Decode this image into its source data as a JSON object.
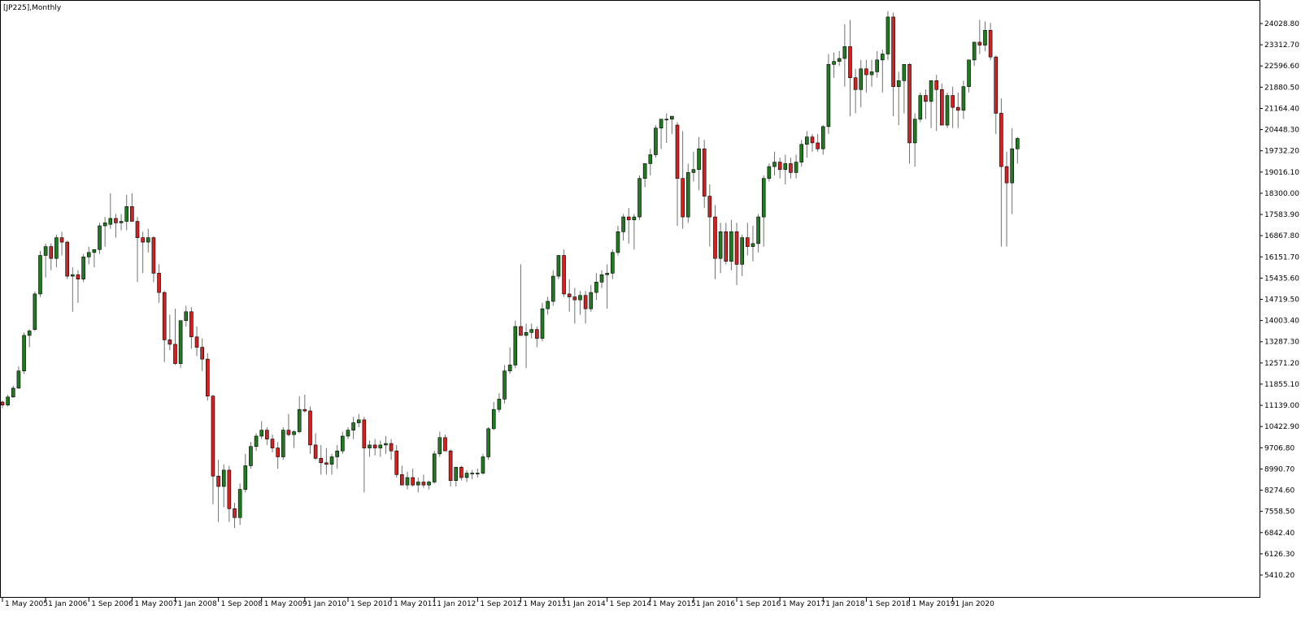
{
  "window": {
    "title": "[JP225],Monthly"
  },
  "colors": {
    "background": "#ffffff",
    "frame": "#000000",
    "bull_body": "#207a20",
    "bear_body": "#d42020",
    "wick": "#707070",
    "text": "#000000"
  },
  "chart_data": {
    "type": "candlestick",
    "title": "[JP225],Monthly",
    "symbol": "JP225",
    "timeframe": "Monthly",
    "price_axis": {
      "position": "right",
      "ticks": [
        5410.2,
        6126.3,
        6842.4,
        7558.5,
        8274.6,
        8990.7,
        9706.8,
        10422.9,
        11139.0,
        11855.1,
        12571.2,
        13287.3,
        14003.4,
        14719.5,
        15435.6,
        16151.7,
        16867.8,
        17583.9,
        18300.0,
        19016.1,
        19732.2,
        20448.3,
        21164.4,
        21880.5,
        22596.6,
        23312.7,
        24028.8
      ],
      "tick_labels": [
        "5410.20",
        "6126.30",
        "6842.40",
        "7558.50",
        "8274.60",
        "8990.70",
        "9706.80",
        "10422.90",
        "11139.00",
        "11855.10",
        "12571.20",
        "13287.30",
        "14003.40",
        "14719.50",
        "15435.60",
        "16151.70",
        "16867.80",
        "17583.90",
        "18300.00",
        "19016.10",
        "19732.20",
        "20448.30",
        "21164.40",
        "21880.50",
        "22596.60",
        "23312.70",
        "24028.80"
      ]
    },
    "time_axis": {
      "labels": [
        "1 May 2005",
        "1 Jan 2006",
        "1 Sep 2006",
        "1 May 2007",
        "1 Jan 2008",
        "1 Sep 2008",
        "1 May 2009",
        "1 Jan 2010",
        "1 Sep 2010",
        "1 May 2011",
        "1 Jan 2012",
        "1 Sep 2012",
        "1 May 2013",
        "1 Jan 2014",
        "1 Sep 2014",
        "1 May 2015",
        "1 Jan 2016",
        "1 Sep 2016",
        "1 May 2017",
        "1 Jan 2018",
        "1 Sep 2018",
        "1 May 2019",
        "1 Jan 2020"
      ],
      "label_candle_index": [
        0,
        8,
        16,
        24,
        32,
        40,
        48,
        56,
        64,
        72,
        80,
        88,
        96,
        104,
        112,
        120,
        128,
        136,
        144,
        152,
        160,
        168,
        176
      ]
    },
    "first_candle": "May 2005",
    "ohlc": [
      [
        11250,
        11300,
        11050,
        11150
      ],
      [
        11150,
        11500,
        11100,
        11420
      ],
      [
        11420,
        11800,
        11400,
        11720
      ],
      [
        11720,
        12450,
        11700,
        12300
      ],
      [
        12300,
        13600,
        12200,
        13500
      ],
      [
        13500,
        13700,
        13100,
        13650
      ],
      [
        13700,
        14980,
        13650,
        14900
      ],
      [
        14900,
        16350,
        14800,
        16200
      ],
      [
        16200,
        16600,
        15450,
        16500
      ],
      [
        16500,
        16600,
        15700,
        16100
      ],
      [
        16100,
        16900,
        15800,
        16800
      ],
      [
        16800,
        17000,
        16200,
        16650
      ],
      [
        16650,
        16700,
        15400,
        15500
      ],
      [
        15500,
        15800,
        14300,
        15550
      ],
      [
        15550,
        15700,
        14600,
        15400
      ],
      [
        15400,
        16250,
        15300,
        16150
      ],
      [
        16150,
        16500,
        15900,
        16300
      ],
      [
        16300,
        16400,
        15800,
        16400
      ],
      [
        16400,
        17300,
        16250,
        17200
      ],
      [
        17200,
        17500,
        16500,
        17300
      ],
      [
        17250,
        18300,
        17100,
        17450
      ],
      [
        17450,
        17600,
        16800,
        17300
      ],
      [
        17300,
        17600,
        17050,
        17350
      ],
      [
        17350,
        18250,
        17050,
        17850
      ],
      [
        17850,
        18300,
        17500,
        17350
      ],
      [
        17350,
        17500,
        15300,
        16800
      ],
      [
        16800,
        17000,
        15600,
        16650
      ],
      [
        16650,
        17100,
        16300,
        16800
      ],
      [
        16800,
        16850,
        15300,
        15600
      ],
      [
        15600,
        15900,
        14600,
        14950
      ],
      [
        14950,
        15000,
        12600,
        13350
      ],
      [
        13350,
        14200,
        13000,
        13200
      ],
      [
        13200,
        14400,
        12500,
        12550
      ],
      [
        12550,
        14000,
        12400,
        14000
      ],
      [
        14000,
        14500,
        13800,
        14300
      ],
      [
        14300,
        14450,
        13050,
        13450
      ],
      [
        13450,
        13800,
        12800,
        13100
      ],
      [
        13100,
        13400,
        12300,
        12700
      ],
      [
        12700,
        12900,
        11300,
        11450
      ],
      [
        11450,
        11500,
        7800,
        8750
      ],
      [
        8750,
        9300,
        7200,
        8400
      ],
      [
        8400,
        9150,
        7700,
        8950
      ],
      [
        8950,
        9100,
        7200,
        7650
      ],
      [
        7650,
        7850,
        7000,
        7350
      ],
      [
        7350,
        8500,
        7100,
        8300
      ],
      [
        8300,
        9500,
        8200,
        9100
      ],
      [
        9100,
        9900,
        9000,
        9750
      ],
      [
        9750,
        10200,
        9600,
        10100
      ],
      [
        10100,
        10600,
        10000,
        10300
      ],
      [
        10300,
        10400,
        9800,
        10000
      ],
      [
        10000,
        10150,
        9550,
        9700
      ],
      [
        9700,
        9900,
        9000,
        9400
      ],
      [
        9400,
        10400,
        9300,
        10300
      ],
      [
        10300,
        10850,
        10100,
        10150
      ],
      [
        10150,
        10300,
        9700,
        10250
      ],
      [
        10250,
        11450,
        10200,
        11000
      ],
      [
        11000,
        11500,
        10900,
        10950
      ],
      [
        10950,
        11100,
        9500,
        9800
      ],
      [
        9800,
        10200,
        9300,
        9350
      ],
      [
        9350,
        9800,
        8800,
        9200
      ],
      [
        9200,
        9700,
        8800,
        9150
      ],
      [
        9150,
        9500,
        8800,
        9400
      ],
      [
        9400,
        9800,
        9000,
        9600
      ],
      [
        9600,
        10250,
        9500,
        10100
      ],
      [
        10100,
        10400,
        10000,
        10300
      ],
      [
        10300,
        10750,
        10000,
        10550
      ],
      [
        10550,
        10850,
        10400,
        10650
      ],
      [
        10650,
        10750,
        8200,
        9700
      ],
      [
        9700,
        9950,
        9400,
        9800
      ],
      [
        9800,
        10000,
        9450,
        9700
      ],
      [
        9700,
        9950,
        9400,
        9800
      ],
      [
        9800,
        10100,
        9500,
        9850
      ],
      [
        9850,
        10000,
        9300,
        9600
      ],
      [
        9600,
        9800,
        8700,
        8800
      ],
      [
        8800,
        9100,
        8450,
        8450
      ],
      [
        8450,
        8900,
        8300,
        8700
      ],
      [
        8700,
        9000,
        8400,
        8450
      ],
      [
        8450,
        8700,
        8200,
        8550
      ],
      [
        8550,
        8800,
        8350,
        8450
      ],
      [
        8450,
        8600,
        8300,
        8550
      ],
      [
        8550,
        9600,
        8500,
        9500
      ],
      [
        9500,
        10250,
        9400,
        10050
      ],
      [
        10050,
        10150,
        9600,
        9600
      ],
      [
        9600,
        9650,
        8400,
        8600
      ],
      [
        8600,
        9000,
        8400,
        9050
      ],
      [
        9050,
        9100,
        8600,
        8700
      ],
      [
        8700,
        8950,
        8550,
        8850
      ],
      [
        8850,
        8950,
        8650,
        8850
      ],
      [
        8850,
        9000,
        8700,
        8850
      ],
      [
        8850,
        9500,
        8800,
        9400
      ],
      [
        9400,
        10400,
        9300,
        10350
      ],
      [
        10350,
        11250,
        10300,
        11000
      ],
      [
        11000,
        11550,
        10900,
        11350
      ],
      [
        11350,
        12500,
        11200,
        12300
      ],
      [
        12300,
        13100,
        12200,
        12500
      ],
      [
        12500,
        14000,
        12400,
        13800
      ],
      [
        13800,
        15900,
        13500,
        13500
      ],
      [
        13500,
        13900,
        12400,
        13600
      ],
      [
        13600,
        13900,
        13400,
        13700
      ],
      [
        13700,
        13800,
        13100,
        13400
      ],
      [
        13400,
        14600,
        13300,
        14400
      ],
      [
        14400,
        14800,
        14200,
        14650
      ],
      [
        14650,
        15700,
        14500,
        15500
      ],
      [
        15500,
        16100,
        15400,
        16200
      ],
      [
        16200,
        16400,
        14800,
        14900
      ],
      [
        14900,
        15400,
        14300,
        14800
      ],
      [
        14800,
        15100,
        13900,
        14700
      ],
      [
        14700,
        15000,
        14200,
        14850
      ],
      [
        14850,
        15000,
        13900,
        14400
      ],
      [
        14400,
        15200,
        14300,
        14950
      ],
      [
        14950,
        15600,
        14700,
        15300
      ],
      [
        15300,
        15700,
        15100,
        15550
      ],
      [
        15550,
        15900,
        14400,
        15600
      ],
      [
        15600,
        16400,
        15400,
        16300
      ],
      [
        16300,
        17200,
        16200,
        17000
      ],
      [
        17000,
        17600,
        16700,
        17500
      ],
      [
        17500,
        17800,
        16600,
        17400
      ],
      [
        17400,
        17600,
        16400,
        17500
      ],
      [
        17500,
        18900,
        17400,
        18800
      ],
      [
        18800,
        19300,
        18500,
        19300
      ],
      [
        19300,
        19800,
        18900,
        19600
      ],
      [
        19600,
        20600,
        19500,
        20500
      ],
      [
        20500,
        20800,
        19800,
        20800
      ],
      [
        20800,
        21000,
        20000,
        20800
      ],
      [
        20800,
        20900,
        20300,
        20900
      ],
      [
        20600,
        20700,
        17200,
        18800
      ],
      [
        18800,
        20400,
        17100,
        17500
      ],
      [
        17500,
        19300,
        17300,
        19000
      ],
      [
        19000,
        19700,
        18700,
        19100
      ],
      [
        19100,
        20200,
        18400,
        19800
      ],
      [
        19800,
        20100,
        17800,
        18200
      ],
      [
        18200,
        18600,
        16500,
        17500
      ],
      [
        17500,
        17900,
        15400,
        16100
      ],
      [
        16100,
        17300,
        15600,
        17000
      ],
      [
        17000,
        17300,
        15900,
        16000
      ],
      [
        16000,
        17400,
        15700,
        17000
      ],
      [
        17000,
        17300,
        15200,
        15900
      ],
      [
        15900,
        16900,
        15500,
        16800
      ],
      [
        16800,
        17300,
        16200,
        16500
      ],
      [
        16500,
        17200,
        16000,
        16600
      ],
      [
        16600,
        17600,
        16300,
        17500
      ],
      [
        17500,
        18900,
        16500,
        18800
      ],
      [
        18800,
        19300,
        18700,
        19200
      ],
      [
        19200,
        19700,
        18900,
        19350
      ],
      [
        19350,
        19500,
        18800,
        19100
      ],
      [
        19100,
        19600,
        18600,
        19300
      ],
      [
        19300,
        19500,
        18800,
        19000
      ],
      [
        19000,
        19600,
        18800,
        19350
      ],
      [
        19350,
        20100,
        19200,
        19950
      ],
      [
        19950,
        20400,
        19500,
        20200
      ],
      [
        20200,
        20300,
        19700,
        20000
      ],
      [
        20000,
        20300,
        19700,
        19800
      ],
      [
        19800,
        20600,
        19600,
        20550
      ],
      [
        20550,
        23000,
        20300,
        22650
      ],
      [
        22650,
        23050,
        22200,
        22750
      ],
      [
        22750,
        23100,
        22600,
        22850
      ],
      [
        22850,
        24000,
        21900,
        23250
      ],
      [
        23250,
        24150,
        20900,
        22200
      ],
      [
        22200,
        22500,
        21000,
        21800
      ],
      [
        21800,
        22800,
        21200,
        22500
      ],
      [
        22500,
        22800,
        21700,
        22300
      ],
      [
        22300,
        22800,
        21900,
        22400
      ],
      [
        22400,
        23100,
        22200,
        22800
      ],
      [
        22800,
        23150,
        21700,
        23000
      ],
      [
        23000,
        24450,
        22800,
        24250
      ],
      [
        24250,
        24400,
        20900,
        21900
      ],
      [
        21900,
        22400,
        20600,
        22100
      ],
      [
        22100,
        22650,
        21000,
        22650
      ],
      [
        22650,
        22700,
        19300,
        20000
      ],
      [
        20000,
        21000,
        19200,
        20800
      ],
      [
        20800,
        21700,
        20700,
        21600
      ],
      [
        21600,
        21800,
        20800,
        21400
      ],
      [
        21400,
        22100,
        20500,
        22100
      ],
      [
        22100,
        22300,
        20400,
        21800
      ],
      [
        21800,
        22000,
        20700,
        20600
      ],
      [
        20600,
        21700,
        20500,
        21600
      ],
      [
        21600,
        21900,
        20500,
        21200
      ],
      [
        21200,
        21700,
        20500,
        21100
      ],
      [
        21100,
        22100,
        20800,
        21900
      ],
      [
        21900,
        22800,
        21700,
        22800
      ],
      [
        22800,
        23400,
        22600,
        23400
      ],
      [
        23400,
        24150,
        23000,
        23300
      ],
      [
        23300,
        24100,
        23100,
        23800
      ],
      [
        23800,
        24050,
        22800,
        22900
      ],
      [
        22900,
        22950,
        20300,
        21000
      ],
      [
        21000,
        21500,
        16500,
        19200
      ],
      [
        19200,
        19700,
        16500,
        18650
      ],
      [
        18650,
        20500,
        17600,
        19800
      ],
      [
        19800,
        20200,
        19300,
        20150
      ]
    ]
  }
}
